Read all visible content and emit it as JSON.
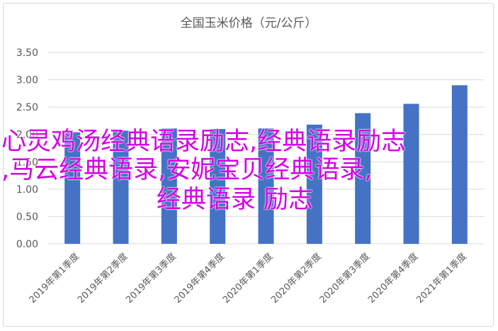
{
  "chart_data": {
    "type": "bar",
    "title": "全国玉米价格（元/公斤）",
    "xlabel": "",
    "ylabel": "",
    "categories": [
      "2019年第1季度",
      "2019年第2季度",
      "2019年第3季度",
      "2019年第4季度",
      "2020年第1季度",
      "2020年第2季度",
      "2020年第3季度",
      "2020年第4季度",
      "2021年第1季度"
    ],
    "values": [
      2.04,
      2.07,
      2.11,
      2.1,
      2.11,
      2.18,
      2.39,
      2.56,
      2.9
    ],
    "ylim": [
      0,
      3.5
    ],
    "yticks": [
      "0.00",
      "0.50",
      "1.00",
      "1.50",
      "2.00",
      "2.50",
      "3.00",
      "3.50"
    ],
    "grid": true,
    "bar_color": "#4472c4",
    "grid_color": "#d9d9d9"
  },
  "overlay": {
    "line1": "心灵鸡汤经典语录励志,经典语录励志",
    "line2": ",马云经典语录,安妮宝贝经典语录,",
    "line3": "经典语录 励志",
    "color": "#d400e6"
  }
}
